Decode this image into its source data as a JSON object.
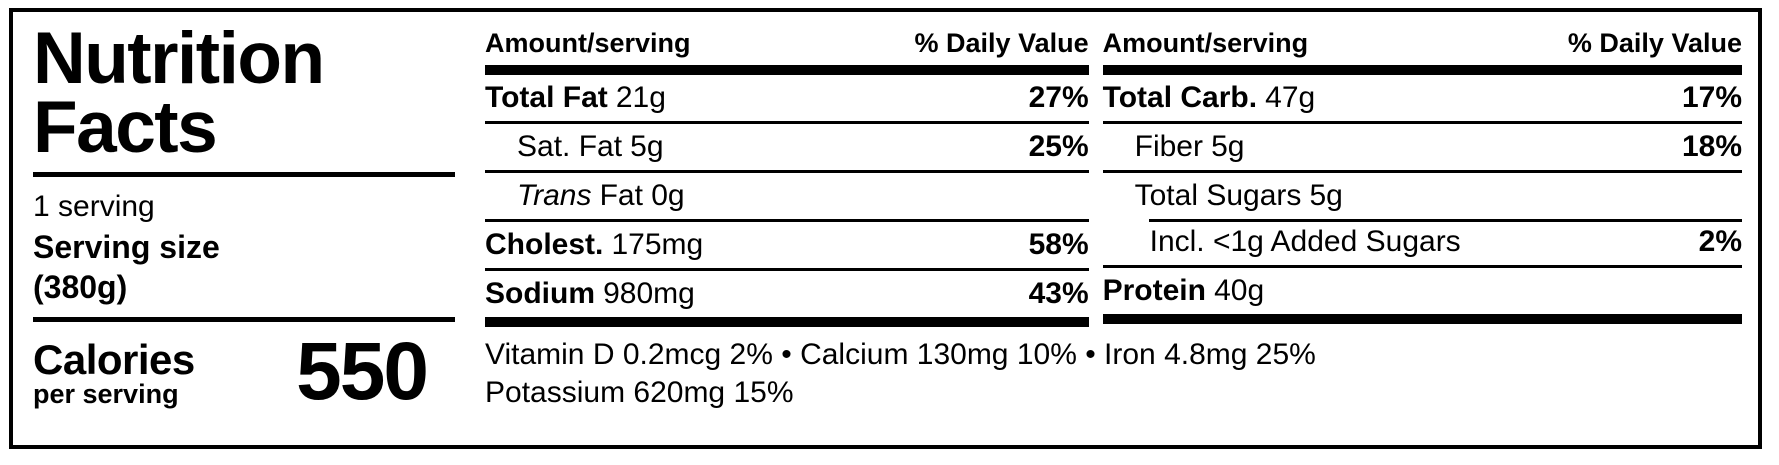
{
  "label": {
    "title": "Nutrition Facts",
    "serving_count": "1 serving",
    "serving_size_label": "Serving size",
    "serving_size_value": "(380g)",
    "calories_label": "Calories",
    "calories_sublabel": "per serving",
    "calories_value": "550"
  },
  "columns": [
    {
      "header_amount": "Amount/serving",
      "header_dv": "% Daily Value",
      "rows": [
        {
          "name": "Total Fat",
          "amount": "21g",
          "dv": "27%"
        },
        {
          "name": "Sat. Fat",
          "amount": "5g",
          "dv": "25%"
        },
        {
          "name": "Trans",
          "amount": "Fat 0g",
          "dv": ""
        },
        {
          "name": "Cholest.",
          "amount": "175mg",
          "dv": "58%"
        },
        {
          "name": "Sodium",
          "amount": "980mg",
          "dv": "43%"
        }
      ]
    },
    {
      "header_amount": "Amount/serving",
      "header_dv": "% Daily Value",
      "rows": [
        {
          "name": "Total Carb.",
          "amount": "47g",
          "dv": "17%"
        },
        {
          "name": "Fiber",
          "amount": "5g",
          "dv": "18%"
        },
        {
          "name": "Total Sugars",
          "amount": "5g",
          "dv": ""
        },
        {
          "name": "Incl. <1g Added Sugars",
          "amount": "",
          "dv": "2%"
        },
        {
          "name": "Protein",
          "amount": "40g",
          "dv": ""
        }
      ]
    }
  ],
  "footnote": {
    "line1": "Vitamin D 0.2mcg 2% • Calcium 130mg 10% • Iron 4.8mg 25%",
    "line2": "Potassium 620mg 15%"
  },
  "colors": {
    "ink": "#000000",
    "background": "#ffffff"
  }
}
